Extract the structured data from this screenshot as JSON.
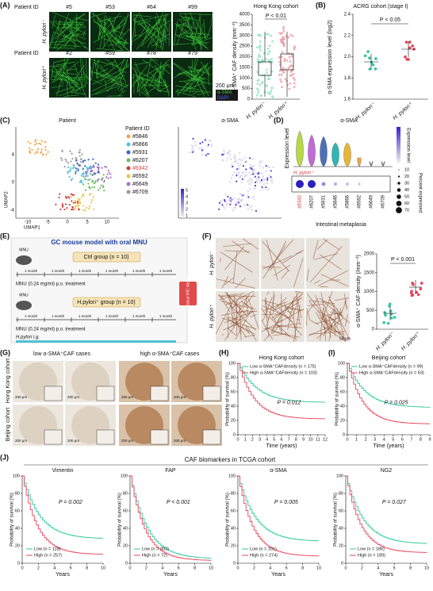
{
  "A": {
    "label": "(A)",
    "patient_id": "Patient ID",
    "row1_ids": [
      "#5",
      "#53",
      "#64",
      "#99"
    ],
    "row2_ids": [
      "#2",
      "#59",
      "#78",
      "#79"
    ],
    "groups": [
      "H. pylori⁻",
      "H. pylori⁺"
    ],
    "scale": "200 μm",
    "legend": [
      "α-SMA",
      "DAPI"
    ],
    "box": {
      "title": "Hong Kong cohort",
      "p": "P < 0.01",
      "ylabel": "α-SMA⁺ CAF density (mm⁻²)",
      "yticks": [
        "0",
        "500",
        "1000",
        "1500",
        "2000",
        "2500",
        "3000",
        "3500",
        "4000"
      ]
    }
  },
  "B": {
    "label": "(B)",
    "title": "ACRG cohort (stage I)",
    "p": "P < 0.05",
    "ylabel": "α-SMA expression level (log2)",
    "yticks": [
      "1.6",
      "1.8",
      "2.0",
      "2.2",
      "2.4"
    ]
  },
  "C": {
    "label": "(C)",
    "title1": "Patient",
    "title2": "α-SMA",
    "legend_title": "Patient ID",
    "ids": [
      "#5846",
      "#5866",
      "#5931",
      "#6207",
      "#6342",
      "#6592",
      "#6649",
      "#6709"
    ],
    "xlabel": "UMAP1",
    "ylabel": "UMAP2",
    "xticks": [
      "-10",
      "-5",
      "0",
      "5",
      "10"
    ],
    "yticks": [
      "4",
      "0",
      "-4"
    ],
    "scale": [
      "5",
      "4",
      "3",
      "2",
      "1"
    ]
  },
  "D": {
    "label": "(D)",
    "title": "α-SMA",
    "ylabel": "Expression level",
    "tag": "H. pylori⁺",
    "ids": [
      "#6342",
      "#6207",
      "#5931",
      "#5846",
      "#5866",
      "#6592",
      "#6649",
      "#6709"
    ],
    "xlabel": "Intestinal metaplasia",
    "color_label": "Expression level",
    "size_label": "Percent expressed",
    "sizes": [
      "10",
      "20",
      "30",
      "40",
      "50",
      "60",
      "70"
    ]
  },
  "E": {
    "label": "(E)",
    "title": "GC mouse model with oral MNU",
    "ctrl": "Ctrl group (n = 10)",
    "hp": "H.pylori⁺ group (n = 10)",
    "month": "1 month",
    "treat": "MNU (0.24 mg/ml) p.o. treatment",
    "ig": "H.pylori i.g.",
    "end": "GC tissue IHC staining",
    "mnu": "MNU"
  },
  "F": {
    "label": "(F)",
    "p": "P < 0.001",
    "ylabel": "α-SMA⁺ CAF density (/mm⁻²)",
    "yticks": [
      "0",
      "500",
      "1000",
      "1500",
      "2000"
    ],
    "scale": "50 μm"
  },
  "G": {
    "label": "(G)",
    "low": "low α-SMA⁺CAF cases",
    "high": "high α-SMA⁺CAF cases",
    "rows": [
      "Hong Kong cohort",
      "Beijing cohort"
    ],
    "scale": "200 μm"
  },
  "H": {
    "label": "(H)",
    "title": "Hong Kong cohort",
    "legend": [
      "Low α-SMA⁺CAFdensity (n = 175)",
      "High α-SMA⁺CAFdensity (n = 103)"
    ],
    "p": "P = 0.012",
    "xlabel": "Time (years)",
    "ylabel": "Probability of survival (%)",
    "xticks": [
      "0",
      "1",
      "2",
      "3",
      "4",
      "5",
      "6",
      "7",
      "8",
      "9",
      "10",
      "11",
      "12"
    ],
    "yticks": [
      "0",
      "20",
      "40",
      "60",
      "80",
      "100"
    ]
  },
  "I": {
    "label": "(I)",
    "title": "Beijing cohort",
    "legend": [
      "Low α-SMA⁺CAFdensity (n = 99)",
      "High α-SMA⁺CAFdensity (n = 63)"
    ],
    "p": "P = 0.025",
    "xlabel": "Time (years)",
    "ylabel": "Probability of survival (%)",
    "xticks": [
      "0",
      "1",
      "2",
      "3",
      "4",
      "5",
      "6",
      "7",
      "8",
      "9"
    ],
    "yticks": [
      "0",
      "20",
      "40",
      "60",
      "80",
      "100"
    ]
  },
  "J": {
    "label": "(J)",
    "title": "CAF biomarkers in TCGA cohort",
    "xlabel": "Years",
    "ylabel": "Probability of survival (%)",
    "xticks": [
      "0",
      "2",
      "4",
      "6",
      "8",
      "10"
    ],
    "yticks": [
      "0",
      "20",
      "40",
      "60",
      "80",
      "100"
    ],
    "plots": [
      {
        "title": "Vimentin",
        "p": "P = 0.002",
        "legend": [
          "Low (n = 118)",
          "High (n = 257)"
        ]
      },
      {
        "title": "FAP",
        "p": "P < 0.001",
        "legend": [
          "Low (n = 303)",
          "High (n = 72)"
        ]
      },
      {
        "title": "α-SMA",
        "p": "P = 0.005",
        "legend": [
          "Low (n = 101)",
          "High (n = 274)"
        ]
      },
      {
        "title": "NG2",
        "p": "P = 0.027",
        "legend": [
          "Low (n = 186)",
          "High (n = 189)"
        ]
      }
    ]
  }
}
